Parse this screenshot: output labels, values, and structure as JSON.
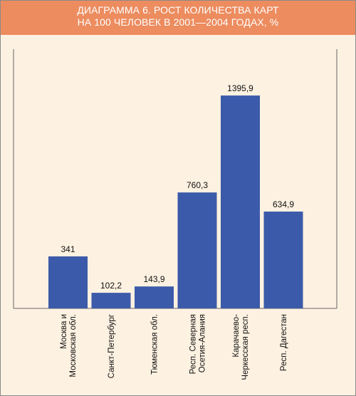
{
  "header": {
    "line1": "ДИАГРАММА 6. РОСТ КОЛИЧЕСТВА КАРТ",
    "line2": "НА 100 ЧЕЛОВЕК В 2001—2004 ГОДАХ, %"
  },
  "colors": {
    "header_bg": "#ec8c5f",
    "plot_bg": "#fdf1e1",
    "bar": "#3b5aa9"
  },
  "chart_data": {
    "type": "bar",
    "title": "ДИАГРАММА 6. РОСТ КОЛИЧЕСТВА КАРТ НА 100 ЧЕЛОВЕК В 2001—2004 ГОДАХ, %",
    "categories": [
      [
        "Москва и",
        "Московская обл."
      ],
      [
        "Санкт-Петербург"
      ],
      [
        "Тюменская обл."
      ],
      [
        "Респ. Северная",
        "Осетия-Алания"
      ],
      [
        "Карачаево-",
        "Черкесская респ."
      ],
      [
        "Респ. Дагестан"
      ]
    ],
    "values": [
      341,
      102.2,
      143.9,
      760.3,
      1395.9,
      634.9
    ],
    "value_labels": [
      "341",
      "102,2",
      "143,9",
      "760,3",
      "1395,9",
      "634,9"
    ],
    "ylim": [
      0,
      1700
    ],
    "grid": false,
    "xlabel": "",
    "ylabel": ""
  }
}
